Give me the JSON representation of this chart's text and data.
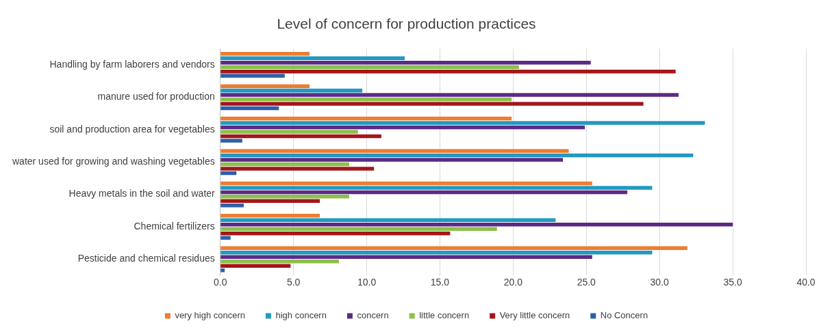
{
  "chart_data": {
    "type": "bar",
    "orientation": "horizontal",
    "title": "Level of concern for production practices",
    "categories": [
      "Handling by farm laborers and vendors",
      "manure used for production",
      "soil and production area for vegetables",
      "water used for growing and washing vegetables",
      "Heavy metals in the soil and water",
      "Chemical fertilizers",
      "Pesticide and chemical residues"
    ],
    "series": [
      {
        "name": "very high concern",
        "color": "#ed7d31",
        "values": [
          6.1,
          6.1,
          19.9,
          23.8,
          25.4,
          6.8,
          31.9
        ]
      },
      {
        "name": "high concern",
        "color": "#2199c0",
        "values": [
          12.6,
          9.7,
          33.1,
          32.3,
          29.5,
          22.9,
          29.5
        ]
      },
      {
        "name": "concern",
        "color": "#5b2a86",
        "values": [
          25.3,
          31.3,
          24.9,
          23.4,
          27.8,
          35.0,
          25.4
        ]
      },
      {
        "name": "little concern",
        "color": "#8cc04a",
        "values": [
          20.4,
          19.9,
          9.4,
          8.8,
          8.8,
          18.9,
          8.1
        ]
      },
      {
        "name": "Very little concern",
        "color": "#a3161b",
        "values": [
          31.1,
          28.9,
          11.0,
          10.5,
          6.8,
          15.7,
          4.8
        ]
      },
      {
        "name": "No Concern",
        "color": "#2e5fa8",
        "values": [
          4.4,
          4.0,
          1.5,
          1.1,
          1.6,
          0.7,
          0.3
        ]
      }
    ],
    "xlim": [
      0,
      40
    ],
    "xticks": [
      {
        "value": 0,
        "label": "0.0"
      },
      {
        "value": 5,
        "label": "5.0"
      },
      {
        "value": 10,
        "label": "10.0"
      },
      {
        "value": 15,
        "label": "15.0"
      },
      {
        "value": 20,
        "label": "20.0"
      },
      {
        "value": 25,
        "label": "25.0"
      },
      {
        "value": 30,
        "label": "30.0"
      },
      {
        "value": 35,
        "label": "35.0"
      },
      {
        "value": 40,
        "label": "40.0"
      }
    ],
    "grid": "x",
    "legend": "bottom"
  }
}
